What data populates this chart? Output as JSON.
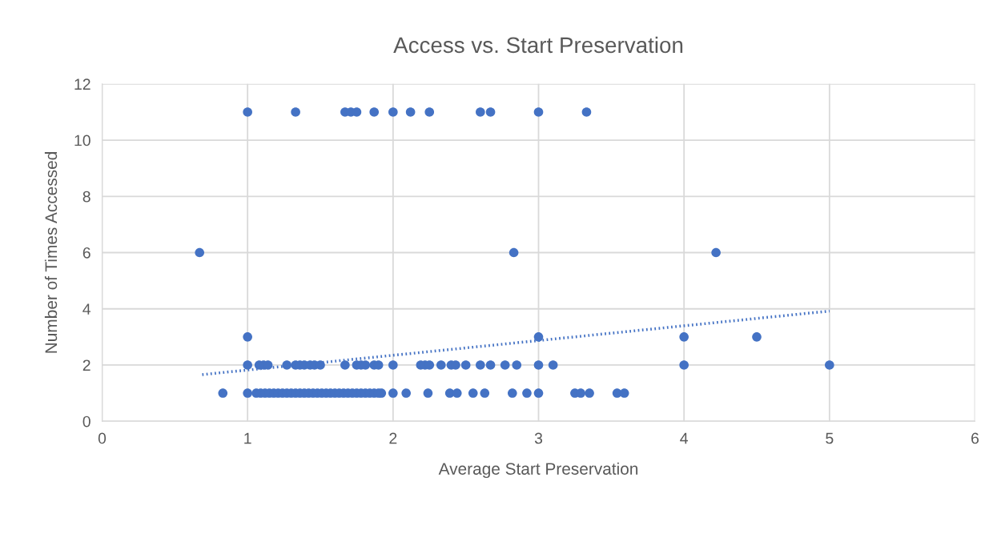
{
  "chart_data": {
    "type": "scatter",
    "title": "Access vs. Start Preservation",
    "xlabel": "Average Start Preservation",
    "ylabel": "Number of Times Accessed",
    "xlim": [
      0,
      6
    ],
    "xticks": [
      0,
      1,
      2,
      3,
      4,
      5,
      6
    ],
    "ylim": [
      0,
      12
    ],
    "yticks": [
      0,
      2,
      4,
      6,
      8,
      10,
      12
    ],
    "grid": true,
    "marker": "circle",
    "series": [
      {
        "color": "#4472c4",
        "x": [
          1.0,
          1.33,
          1.67,
          1.71,
          1.75,
          1.87,
          2.0,
          2.12,
          2.25,
          2.6,
          2.67,
          3.0,
          3.33,
          0.67,
          2.83,
          4.22,
          1.0,
          3.0,
          4.0,
          4.5,
          1.0,
          1.08,
          1.11,
          1.14,
          1.27,
          1.33,
          1.36,
          1.39,
          1.43,
          1.46,
          1.5,
          1.67,
          1.75,
          1.78,
          1.81,
          1.87,
          1.9,
          2.0,
          2.19,
          2.22,
          2.25,
          2.33,
          2.4,
          2.43,
          2.5,
          2.6,
          2.67,
          2.77,
          2.85,
          3.0,
          3.1,
          4.0,
          5.0,
          0.83,
          1.0,
          1.06,
          1.09,
          1.12,
          1.15,
          1.18,
          1.21,
          1.24,
          1.27,
          1.3,
          1.33,
          1.36,
          1.39,
          1.42,
          1.45,
          1.48,
          1.51,
          1.54,
          1.57,
          1.6,
          1.63,
          1.66,
          1.69,
          1.72,
          1.75,
          1.78,
          1.81,
          1.84,
          1.87,
          1.9,
          1.92,
          2.0,
          2.09,
          2.24,
          2.39,
          2.44,
          2.55,
          2.63,
          2.82,
          2.92,
          3.0,
          3.25,
          3.29,
          3.35,
          3.54,
          3.59
        ],
        "values": [
          11,
          11,
          11,
          11,
          11,
          11,
          11,
          11,
          11,
          11,
          11,
          11,
          11,
          6,
          6,
          6,
          3,
          3,
          3,
          3,
          2,
          2,
          2,
          2,
          2,
          2,
          2,
          2,
          2,
          2,
          2,
          2,
          2,
          2,
          2,
          2,
          2,
          2,
          2,
          2,
          2,
          2,
          2,
          2,
          2,
          2,
          2,
          2,
          2,
          2,
          2,
          2,
          2,
          1,
          1,
          1,
          1,
          1,
          1,
          1,
          1,
          1,
          1,
          1,
          1,
          1,
          1,
          1,
          1,
          1,
          1,
          1,
          1,
          1,
          1,
          1,
          1,
          1,
          1,
          1,
          1,
          1,
          1,
          1,
          1,
          1,
          1,
          1,
          1,
          1,
          1,
          1,
          1,
          1,
          1,
          1,
          1,
          1,
          1,
          1
        ]
      },
      {
        "type": "line",
        "color": "#4472c4",
        "line_style": "dotted",
        "marker": "none",
        "x": [
          0.67,
          5.0
        ],
        "values": [
          1.65,
          3.92
        ]
      }
    ]
  }
}
